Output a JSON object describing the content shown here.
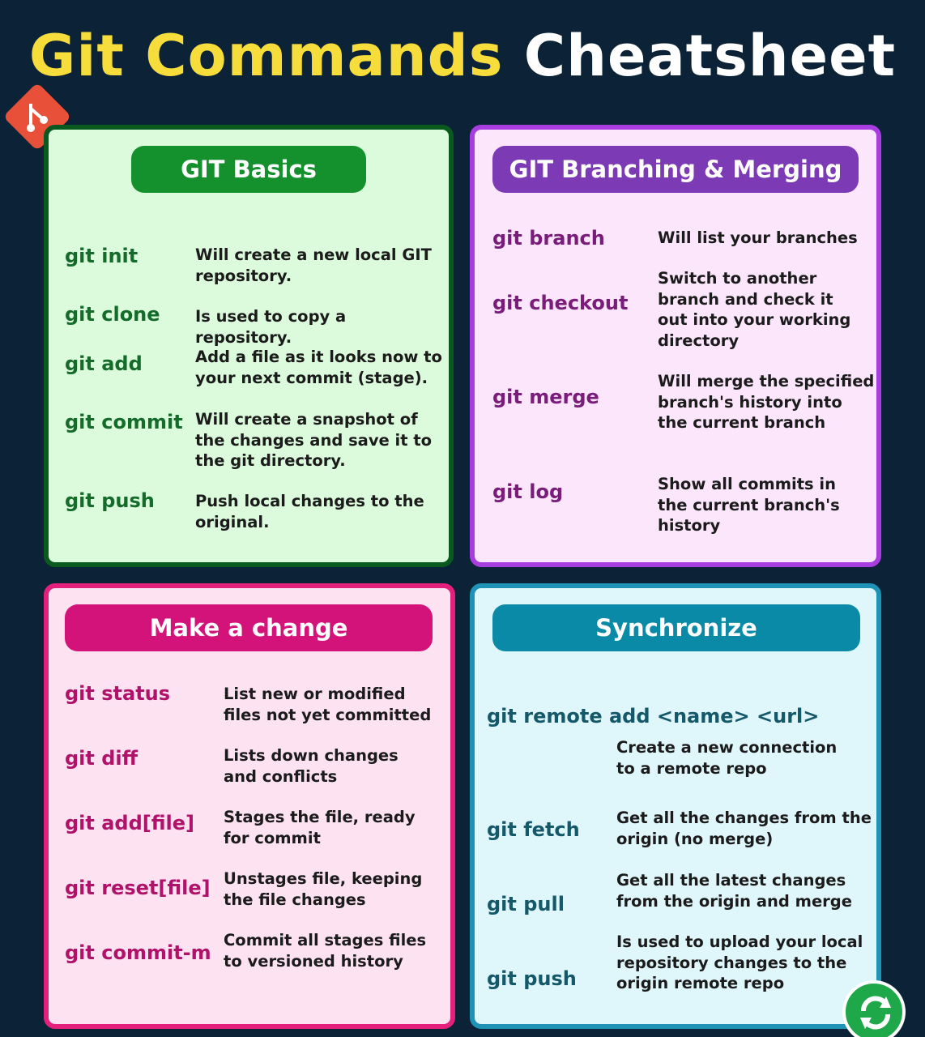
{
  "title": {
    "part1": "Git Commands",
    "part2": "Cheatsheet"
  },
  "icons": {
    "logo": "git-logo-icon",
    "corner": "sync-icon"
  },
  "colors": {
    "background": "#0c2236",
    "title_yellow": "#f6dd3c",
    "basics": "#14902c",
    "branching": "#7c3bb4",
    "change": "#d3137a",
    "sync": "#0a8aa6"
  },
  "basics": {
    "heading": "GIT Basics",
    "items": [
      {
        "cmd": "git init",
        "desc": "Will create a new local GIT repository."
      },
      {
        "cmd": "git clone",
        "desc": "Is used to copy a repository."
      },
      {
        "cmd": "git add",
        "desc": "Add a file as it looks now to your next commit (stage)."
      },
      {
        "cmd": "git commit",
        "desc": "Will create a snapshot of the changes and save it to the git directory."
      },
      {
        "cmd": "git push",
        "desc": "Push local changes to the original."
      }
    ]
  },
  "branching": {
    "heading": "GIT Branching & Merging",
    "items": [
      {
        "cmd": "git branch",
        "desc": "Will list your branches"
      },
      {
        "cmd": "git checkout",
        "desc": "Switch to another branch and check it out into your working directory"
      },
      {
        "cmd": "git merge",
        "desc": "Will merge the specified branch's history into the current branch"
      },
      {
        "cmd": "git log",
        "desc": "Show all commits in the current branch's history"
      }
    ]
  },
  "change": {
    "heading": "Make a change",
    "items": [
      {
        "cmd": "git status",
        "desc": "List new or modified files not yet committed"
      },
      {
        "cmd": "git diff",
        "desc": "Lists down changes and conflicts"
      },
      {
        "cmd": "git add[file]",
        "desc": "Stages the file, ready for commit"
      },
      {
        "cmd": "git reset[file]",
        "desc": "Unstages file, keeping the file changes"
      },
      {
        "cmd": "git commit-m",
        "desc": "Commit all stages files to versioned history"
      }
    ]
  },
  "sync": {
    "heading": "Synchronize",
    "items": [
      {
        "cmd": "git remote add <name> <url>",
        "desc": "Create a new connection to a remote repo"
      },
      {
        "cmd": "git fetch",
        "desc": "Get all the changes from the origin (no merge)"
      },
      {
        "cmd": "git pull",
        "desc": "Get all the latest changes from the origin and merge"
      },
      {
        "cmd": "git push",
        "desc": "Is used to upload your local repository changes to the origin remote repo"
      }
    ]
  }
}
